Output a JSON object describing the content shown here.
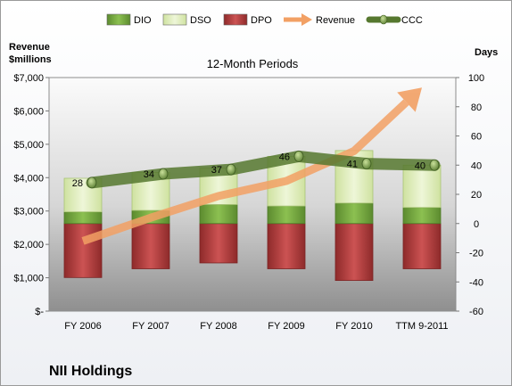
{
  "chart_data": {
    "type": "bar",
    "title": "12-Month Periods",
    "company": "NII Holdings",
    "categories": [
      "FY 2006",
      "FY 2007",
      "FY 2008",
      "FY 2009",
      "FY 2010",
      "TTM 9-2011"
    ],
    "series": [
      {
        "name": "DIO",
        "type": "stacked-bar",
        "axis": "right",
        "values": [
          8,
          9,
          13,
          12,
          14,
          11
        ],
        "color": "#76a844"
      },
      {
        "name": "DSO",
        "type": "stacked-bar",
        "axis": "right",
        "values": [
          23,
          26,
          25,
          34,
          36,
          29
        ],
        "color": "#dfeebd"
      },
      {
        "name": "DPO",
        "type": "negative-bar",
        "axis": "right",
        "values": [
          -37,
          -31,
          -27,
          -31,
          -39,
          -31
        ],
        "color": "#b23a3a"
      },
      {
        "name": "Revenue",
        "type": "arrow",
        "axis": "left",
        "values": [
          2100,
          2800,
          3450,
          3900,
          4800,
          6700
        ],
        "color": "#f29a4e"
      },
      {
        "name": "CCC",
        "type": "line",
        "axis": "right",
        "values": [
          28,
          34,
          37,
          46,
          41,
          40
        ],
        "color": "#4d6e2d"
      }
    ],
    "ylabel_left": "Revenue\n$millions",
    "ylabel_right": "Days",
    "ylim_left": [
      0,
      7000
    ],
    "yticks_left": [
      "$-",
      "$1,000",
      "$2,000",
      "$3,000",
      "$4,000",
      "$5,000",
      "$6,000",
      "$7,000"
    ],
    "ylim_right": [
      -60,
      100
    ],
    "yticks_right": [
      "-60",
      "-40",
      "-20",
      "0",
      "20",
      "40",
      "60",
      "80",
      "100"
    ],
    "data_labels": [
      "28",
      "34",
      "37",
      "46",
      "41",
      "40"
    ],
    "legend_position": "top"
  }
}
